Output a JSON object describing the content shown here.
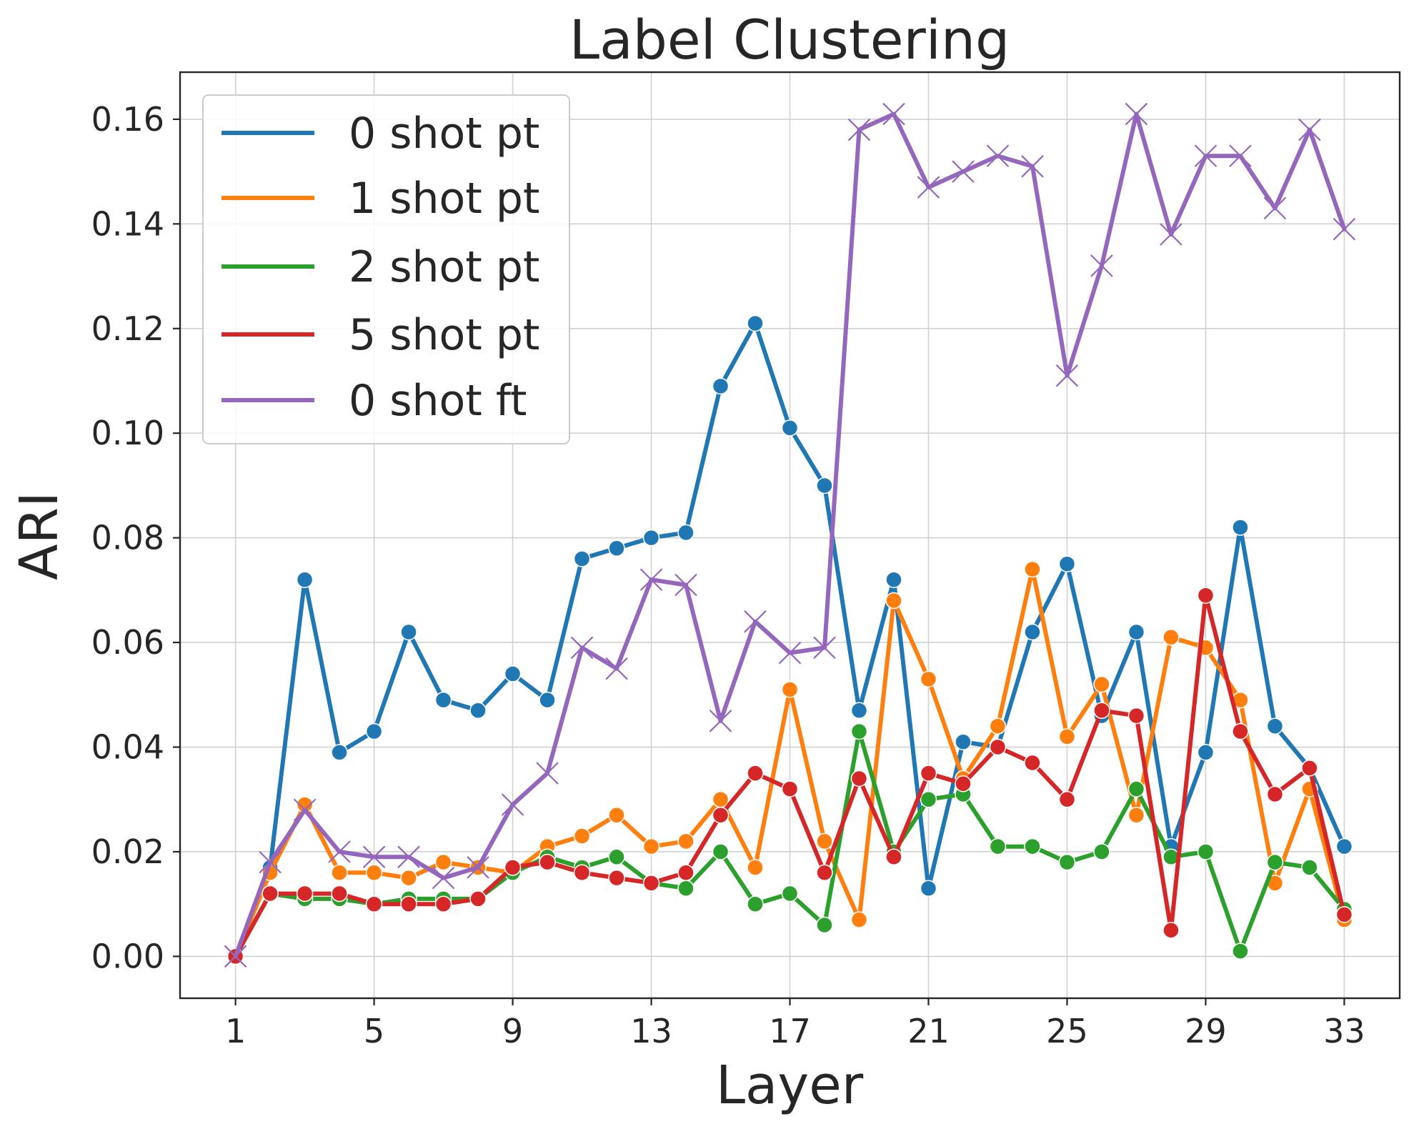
{
  "chart_data": {
    "type": "line",
    "title": "Label Clustering",
    "xlabel": "Layer",
    "ylabel": "ARI",
    "x": [
      1,
      2,
      3,
      4,
      5,
      6,
      7,
      8,
      9,
      10,
      11,
      12,
      13,
      14,
      15,
      16,
      17,
      18,
      19,
      20,
      21,
      22,
      23,
      24,
      25,
      26,
      27,
      28,
      29,
      30,
      31,
      32,
      33
    ],
    "x_ticks": [
      1,
      5,
      9,
      13,
      17,
      21,
      25,
      29,
      33
    ],
    "x_tick_labels": [
      "1",
      "5",
      "9",
      "13",
      "17",
      "21",
      "25",
      "29",
      "33"
    ],
    "xlim": [
      -0.6,
      34.6
    ],
    "ylim": [
      -0.008,
      0.169
    ],
    "y_ticks": [
      0.0,
      0.02,
      0.04,
      0.06,
      0.08,
      0.1,
      0.12,
      0.14,
      0.16
    ],
    "y_tick_labels": [
      "0.00",
      "0.02",
      "0.04",
      "0.06",
      "0.08",
      "0.10",
      "0.12",
      "0.14",
      "0.16"
    ],
    "grid": true,
    "legend_position": "top-left",
    "series": [
      {
        "name": "0 shot pt",
        "color": "#1f77b4",
        "marker": "circle",
        "values": [
          0.0,
          0.017,
          0.072,
          0.039,
          0.043,
          0.062,
          0.049,
          0.047,
          0.054,
          0.049,
          0.076,
          0.078,
          0.08,
          0.081,
          0.109,
          0.121,
          0.101,
          0.09,
          0.047,
          0.072,
          0.013,
          0.041,
          0.04,
          0.062,
          0.075,
          0.046,
          0.062,
          0.021,
          0.039,
          0.082,
          0.044,
          0.036,
          0.021
        ]
      },
      {
        "name": "1 shot pt",
        "color": "#ff7f0e",
        "marker": "circle",
        "values": [
          0.0,
          0.016,
          0.029,
          0.016,
          0.016,
          0.015,
          0.018,
          0.017,
          0.016,
          0.021,
          0.023,
          0.027,
          0.021,
          0.022,
          0.03,
          0.017,
          0.051,
          0.022,
          0.007,
          0.068,
          0.053,
          0.034,
          0.044,
          0.074,
          0.042,
          0.052,
          0.027,
          0.061,
          0.059,
          0.049,
          0.014,
          0.032,
          0.007
        ]
      },
      {
        "name": "2 shot pt",
        "color": "#2ca02c",
        "marker": "circle",
        "values": [
          0.0,
          0.012,
          0.011,
          0.011,
          0.01,
          0.011,
          0.011,
          0.011,
          0.016,
          0.019,
          0.017,
          0.019,
          0.014,
          0.013,
          0.02,
          0.01,
          0.012,
          0.006,
          0.043,
          0.02,
          0.03,
          0.031,
          0.021,
          0.021,
          0.018,
          0.02,
          0.032,
          0.019,
          0.02,
          0.001,
          0.018,
          0.017,
          0.009
        ]
      },
      {
        "name": "5 shot pt",
        "color": "#d62728",
        "marker": "circle",
        "values": [
          0.0,
          0.012,
          0.012,
          0.012,
          0.01,
          0.01,
          0.01,
          0.011,
          0.017,
          0.018,
          0.016,
          0.015,
          0.014,
          0.016,
          0.027,
          0.035,
          0.032,
          0.016,
          0.034,
          0.019,
          0.035,
          0.033,
          0.04,
          0.037,
          0.03,
          0.047,
          0.046,
          0.005,
          0.069,
          0.043,
          0.031,
          0.036,
          0.008
        ]
      },
      {
        "name": "0 shot ft",
        "color": "#9467bd",
        "marker": "x",
        "values": [
          0.0,
          0.018,
          0.028,
          0.02,
          0.019,
          0.019,
          0.015,
          0.017,
          0.029,
          0.035,
          0.059,
          0.055,
          0.072,
          0.071,
          0.045,
          0.064,
          0.058,
          0.059,
          0.158,
          0.161,
          0.147,
          0.15,
          0.153,
          0.151,
          0.111,
          0.132,
          0.161,
          0.138,
          0.153,
          0.153,
          0.143,
          0.158,
          0.139
        ]
      }
    ]
  }
}
